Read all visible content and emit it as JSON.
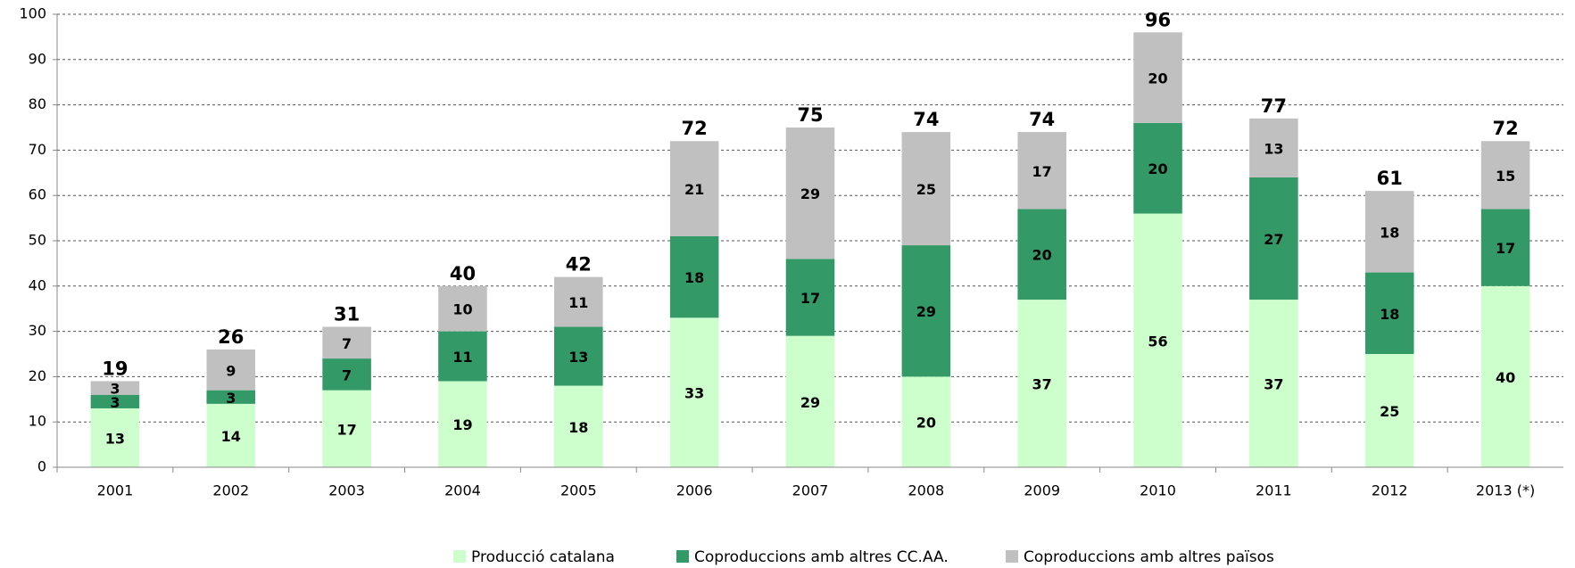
{
  "chart_data": {
    "type": "stacked_bar",
    "categories": [
      "2001",
      "2002",
      "2003",
      "2004",
      "2005",
      "2006",
      "2007",
      "2008",
      "2009",
      "2010",
      "2011",
      "2012",
      "2013 (*)"
    ],
    "series": [
      {
        "name": "Producció catalana",
        "color": "#ccffcc",
        "values": [
          13,
          14,
          17,
          19,
          18,
          33,
          29,
          20,
          37,
          56,
          37,
          25,
          40
        ]
      },
      {
        "name": "Coproduccions amb altres CC.AA.",
        "color": "#339966",
        "values": [
          3,
          3,
          7,
          11,
          13,
          18,
          17,
          29,
          20,
          20,
          27,
          18,
          17
        ]
      },
      {
        "name": "Coproduccions amb altres països",
        "color": "#c0c0c0",
        "values": [
          3,
          9,
          7,
          10,
          11,
          21,
          29,
          25,
          17,
          20,
          13,
          18,
          15
        ]
      }
    ],
    "totals": [
      19,
      26,
      31,
      40,
      42,
      72,
      75,
      74,
      74,
      96,
      77,
      61,
      72
    ],
    "ylim": [
      0,
      100
    ],
    "yticks": [
      0,
      10,
      20,
      30,
      40,
      50,
      60,
      70,
      80,
      90,
      100
    ],
    "grid": true,
    "legend": "bottom"
  }
}
